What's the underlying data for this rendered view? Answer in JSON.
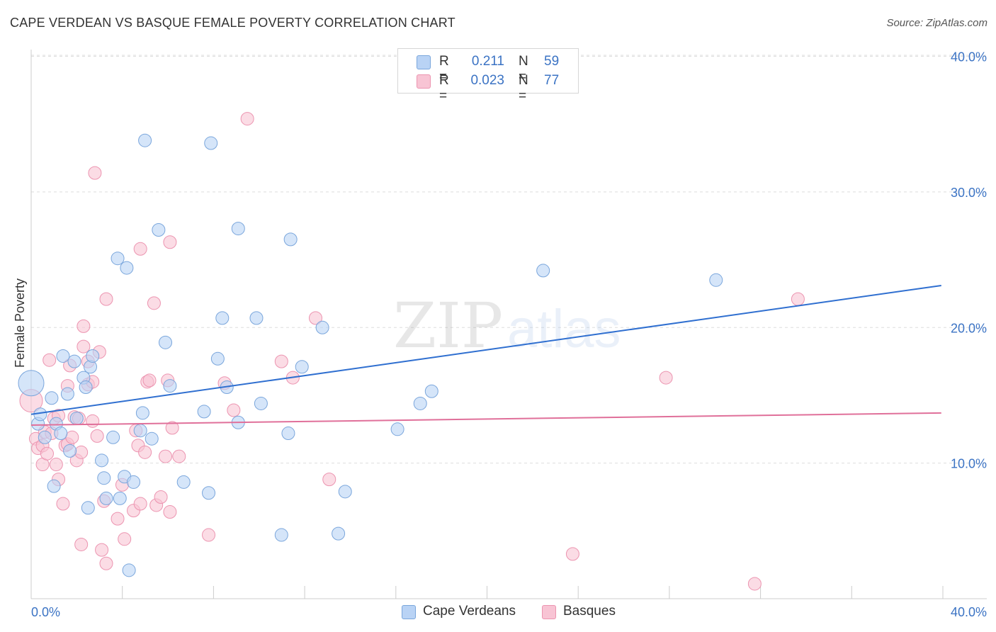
{
  "header": {
    "title": "CAPE VERDEAN VS BASQUE FEMALE POVERTY CORRELATION CHART",
    "source": "Source: ZipAtlas.com"
  },
  "watermark": {
    "zip": "ZIP",
    "atlas": "atlas"
  },
  "legend": {
    "cape": {
      "r_label": "R =",
      "r_value": "0.211",
      "n_label": "N =",
      "n_value": "59"
    },
    "basque": {
      "r_label": "R =",
      "r_value": "0.023",
      "n_label": "N =",
      "n_value": "77"
    }
  },
  "bottom_legend": {
    "cape": "Cape Verdeans",
    "basque": "Basques"
  },
  "colors": {
    "cape_fill": "#b9d3f5",
    "cape_stroke": "#7aa6dc",
    "cape_line": "#2f6fd0",
    "basque_fill": "#f8c4d4",
    "basque_stroke": "#ec94b0",
    "basque_line": "#e0709a",
    "tick_text": "#3b73c4",
    "grid": "#dddddd"
  },
  "chart_data": {
    "type": "scatter",
    "title": "CAPE VERDEAN VS BASQUE FEMALE POVERTY CORRELATION CHART",
    "xlabel": "",
    "ylabel": "Female Poverty",
    "xlim": [
      0,
      42
    ],
    "ylim": [
      0,
      40.5
    ],
    "y_ticks": [
      10,
      20,
      30,
      40
    ],
    "y_tick_labels": [
      "10.0%",
      "20.0%",
      "30.0%",
      "40.0%"
    ],
    "x_tick_labels": [
      "0.0%",
      "40.0%"
    ],
    "series": [
      {
        "name": "Cape Verdeans",
        "trend": [
          [
            0,
            13.6
          ],
          [
            40,
            23.1
          ]
        ],
        "points": [
          [
            0.0,
            15.9,
            18
          ],
          [
            0.3,
            12.9,
            9
          ],
          [
            0.4,
            13.6,
            9
          ],
          [
            0.6,
            11.9,
            9
          ],
          [
            0.9,
            14.8,
            9
          ],
          [
            1.0,
            8.3,
            9
          ],
          [
            1.1,
            12.9,
            9
          ],
          [
            1.3,
            12.2,
            9
          ],
          [
            1.4,
            17.9,
            9
          ],
          [
            1.6,
            15.1,
            9
          ],
          [
            1.7,
            10.9,
            9
          ],
          [
            1.9,
            17.5,
            9
          ],
          [
            2.0,
            13.3,
            9
          ],
          [
            2.3,
            16.3,
            9
          ],
          [
            2.4,
            15.6,
            9
          ],
          [
            2.5,
            6.7,
            9
          ],
          [
            2.6,
            17.1,
            9
          ],
          [
            2.7,
            17.9,
            9
          ],
          [
            3.1,
            10.2,
            9
          ],
          [
            3.2,
            8.9,
            9
          ],
          [
            3.3,
            7.4,
            9
          ],
          [
            3.6,
            11.9,
            9
          ],
          [
            3.8,
            25.1,
            9
          ],
          [
            3.9,
            7.4,
            9
          ],
          [
            4.1,
            9.0,
            9
          ],
          [
            4.2,
            24.4,
            9
          ],
          [
            4.3,
            2.1,
            9
          ],
          [
            4.5,
            8.6,
            9
          ],
          [
            4.8,
            12.4,
            9
          ],
          [
            4.9,
            13.7,
            9
          ],
          [
            5.0,
            33.8,
            9
          ],
          [
            5.3,
            11.8,
            9
          ],
          [
            5.6,
            27.2,
            9
          ],
          [
            5.9,
            18.9,
            9
          ],
          [
            6.1,
            15.7,
            9
          ],
          [
            6.7,
            8.6,
            9
          ],
          [
            7.6,
            13.8,
            9
          ],
          [
            7.8,
            7.8,
            9
          ],
          [
            7.9,
            33.6,
            9
          ],
          [
            8.2,
            17.7,
            9
          ],
          [
            8.4,
            20.7,
            9
          ],
          [
            8.6,
            15.6,
            9
          ],
          [
            9.1,
            13.0,
            9
          ],
          [
            9.1,
            27.3,
            9
          ],
          [
            9.9,
            20.7,
            9
          ],
          [
            10.1,
            14.4,
            9
          ],
          [
            11.0,
            4.7,
            9
          ],
          [
            11.3,
            12.2,
            9
          ],
          [
            11.4,
            26.5,
            9
          ],
          [
            11.9,
            17.1,
            9
          ],
          [
            12.8,
            20.0,
            9
          ],
          [
            13.5,
            4.8,
            9
          ],
          [
            13.8,
            7.9,
            9
          ],
          [
            16.1,
            12.5,
            9
          ],
          [
            17.1,
            14.4,
            9
          ],
          [
            17.6,
            15.3,
            9
          ],
          [
            22.5,
            24.2,
            9
          ],
          [
            30.1,
            23.5,
            9
          ]
        ]
      },
      {
        "name": "Basques",
        "trend": [
          [
            0,
            12.8
          ],
          [
            40,
            13.7
          ]
        ],
        "points": [
          [
            0.0,
            14.6,
            16
          ],
          [
            0.2,
            11.8,
            9
          ],
          [
            0.3,
            11.1,
            9
          ],
          [
            0.5,
            11.3,
            9
          ],
          [
            0.5,
            9.9,
            9
          ],
          [
            0.6,
            12.3,
            9
          ],
          [
            0.7,
            10.7,
            9
          ],
          [
            0.8,
            17.6,
            9
          ],
          [
            0.9,
            12.2,
            9
          ],
          [
            1.0,
            13.3,
            9
          ],
          [
            1.1,
            9.9,
            9
          ],
          [
            1.2,
            13.5,
            9
          ],
          [
            1.2,
            8.8,
            9
          ],
          [
            1.4,
            7.0,
            9
          ],
          [
            1.5,
            11.3,
            9
          ],
          [
            1.6,
            11.4,
            9
          ],
          [
            1.6,
            15.7,
            9
          ],
          [
            1.7,
            17.2,
            9
          ],
          [
            1.8,
            11.9,
            9
          ],
          [
            1.9,
            13.4,
            9
          ],
          [
            2.0,
            10.2,
            9
          ],
          [
            2.1,
            13.3,
            9
          ],
          [
            2.2,
            4.0,
            9
          ],
          [
            2.2,
            10.8,
            9
          ],
          [
            2.3,
            18.6,
            9
          ],
          [
            2.3,
            20.1,
            9
          ],
          [
            2.5,
            17.5,
            9
          ],
          [
            2.5,
            15.8,
            9
          ],
          [
            2.7,
            13.1,
            9
          ],
          [
            2.7,
            16.0,
            9
          ],
          [
            2.8,
            31.4,
            9
          ],
          [
            2.9,
            12.0,
            9
          ],
          [
            3.0,
            18.2,
            9
          ],
          [
            3.1,
            3.6,
            9
          ],
          [
            3.2,
            7.2,
            9
          ],
          [
            3.3,
            2.6,
            9
          ],
          [
            3.3,
            22.1,
            9
          ],
          [
            3.8,
            5.9,
            9
          ],
          [
            4.0,
            8.4,
            9
          ],
          [
            4.1,
            4.4,
            9
          ],
          [
            4.5,
            6.5,
            9
          ],
          [
            4.6,
            12.4,
            9
          ],
          [
            4.7,
            11.3,
            9
          ],
          [
            4.8,
            25.8,
            9
          ],
          [
            4.8,
            7.0,
            9
          ],
          [
            5.0,
            10.8,
            9
          ],
          [
            5.1,
            16.0,
            9
          ],
          [
            5.2,
            16.1,
            9
          ],
          [
            5.4,
            21.8,
            9
          ],
          [
            5.5,
            6.9,
            9
          ],
          [
            5.7,
            7.5,
            9
          ],
          [
            5.9,
            10.5,
            9
          ],
          [
            6.0,
            16.1,
            9
          ],
          [
            6.1,
            6.4,
            9
          ],
          [
            6.1,
            26.3,
            9
          ],
          [
            6.2,
            12.6,
            9
          ],
          [
            6.5,
            10.5,
            9
          ],
          [
            7.8,
            4.7,
            9
          ],
          [
            8.5,
            15.9,
            9
          ],
          [
            8.9,
            13.9,
            9
          ],
          [
            9.5,
            35.4,
            9
          ],
          [
            11.0,
            17.5,
            9
          ],
          [
            11.5,
            16.3,
            9
          ],
          [
            12.5,
            20.7,
            9
          ],
          [
            13.1,
            8.8,
            9
          ],
          [
            23.8,
            3.3,
            9
          ],
          [
            27.9,
            16.3,
            9
          ],
          [
            31.8,
            1.1,
            9
          ],
          [
            33.7,
            22.1,
            9
          ]
        ]
      }
    ]
  }
}
